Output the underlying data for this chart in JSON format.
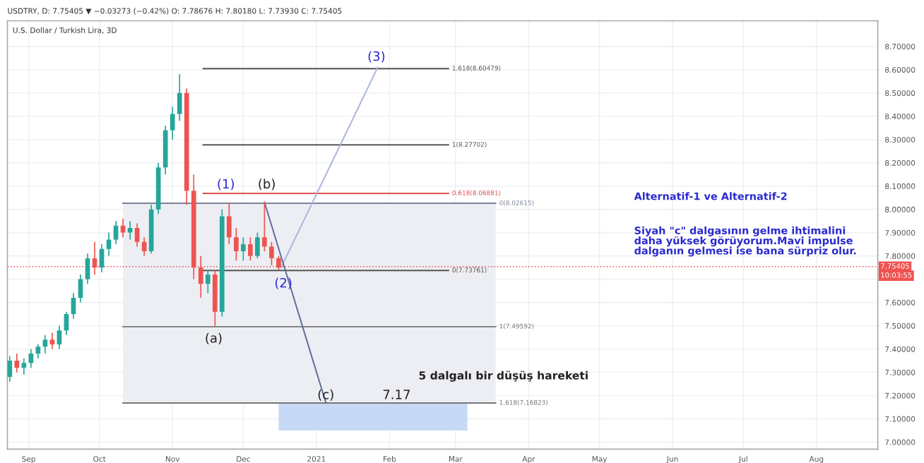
{
  "chart_data": {
    "type": "candlestick",
    "title": "U.S. Dollar / Turkish Lira, 3D",
    "subtitle": "USDTRY, D: 7.75405 ▼ −0.03273 (−0.42%) O: 7.78676 H: 7.80180 L: 7.73930 C: 7.75405",
    "x": [
      "2020-08-24",
      "2020-08-27",
      "2020-08-30",
      "2020-09-02",
      "2020-09-05",
      "2020-09-08",
      "2020-09-11",
      "2020-09-14",
      "2020-09-17",
      "2020-09-20",
      "2020-09-23",
      "2020-09-26",
      "2020-09-29",
      "2020-10-02",
      "2020-10-05",
      "2020-10-08",
      "2020-10-11",
      "2020-10-14",
      "2020-10-17",
      "2020-10-20",
      "2020-10-23",
      "2020-10-26",
      "2020-10-29",
      "2020-11-01",
      "2020-11-04",
      "2020-11-07",
      "2020-11-10",
      "2020-11-13",
      "2020-11-16",
      "2020-11-19",
      "2020-11-22",
      "2020-11-25",
      "2020-11-28",
      "2020-12-01",
      "2020-12-04",
      "2020-12-07",
      "2020-12-10",
      "2020-12-13",
      "2020-12-16"
    ],
    "ohlc": [
      [
        7.28,
        7.37,
        7.26,
        7.35
      ],
      [
        7.35,
        7.38,
        7.3,
        7.32
      ],
      [
        7.32,
        7.36,
        7.29,
        7.34
      ],
      [
        7.34,
        7.4,
        7.32,
        7.38
      ],
      [
        7.38,
        7.42,
        7.36,
        7.41
      ],
      [
        7.41,
        7.46,
        7.38,
        7.44
      ],
      [
        7.44,
        7.47,
        7.4,
        7.42
      ],
      [
        7.42,
        7.5,
        7.4,
        7.48
      ],
      [
        7.48,
        7.56,
        7.46,
        7.55
      ],
      [
        7.55,
        7.64,
        7.53,
        7.62
      ],
      [
        7.62,
        7.72,
        7.6,
        7.7
      ],
      [
        7.7,
        7.81,
        7.68,
        7.79
      ],
      [
        7.79,
        7.86,
        7.72,
        7.75
      ],
      [
        7.75,
        7.85,
        7.73,
        7.83
      ],
      [
        7.83,
        7.9,
        7.8,
        7.87
      ],
      [
        7.87,
        7.95,
        7.85,
        7.93
      ],
      [
        7.93,
        7.96,
        7.88,
        7.9
      ],
      [
        7.9,
        7.95,
        7.87,
        7.92
      ],
      [
        7.92,
        7.94,
        7.84,
        7.86
      ],
      [
        7.86,
        7.88,
        7.8,
        7.82
      ],
      [
        7.82,
        8.02,
        7.81,
        8.0
      ],
      [
        8.0,
        8.2,
        7.98,
        8.18
      ],
      [
        8.18,
        8.36,
        8.15,
        8.34
      ],
      [
        8.34,
        8.44,
        8.3,
        8.41
      ],
      [
        8.41,
        8.58,
        8.38,
        8.5
      ],
      [
        8.5,
        8.52,
        8.02,
        8.08
      ],
      [
        8.08,
        8.15,
        7.7,
        7.75
      ],
      [
        7.75,
        7.8,
        7.62,
        7.68
      ],
      [
        7.68,
        7.74,
        7.64,
        7.72
      ],
      [
        7.72,
        7.74,
        7.5,
        7.56
      ],
      [
        7.56,
        8.0,
        7.54,
        7.97
      ],
      [
        7.97,
        8.03,
        7.85,
        7.88
      ],
      [
        7.88,
        7.92,
        7.78,
        7.82
      ],
      [
        7.82,
        7.88,
        7.78,
        7.85
      ],
      [
        7.85,
        7.88,
        7.78,
        7.8
      ],
      [
        7.8,
        7.9,
        7.79,
        7.88
      ],
      [
        7.88,
        8.03,
        7.82,
        7.84
      ],
      [
        7.84,
        7.86,
        7.76,
        7.79
      ],
      [
        7.79,
        7.8,
        7.74,
        7.75
      ]
    ],
    "series": [
      {
        "type": "line",
        "color": "#eceef3",
        "x": [
          "2020-10-11",
          "2021-03-18"
        ],
        "values": [
          null,
          null
        ],
        "lower": [
          7.17,
          7.17
        ],
        "upper": [
          8.03,
          8.03
        ]
      },
      {
        "type": "line",
        "color": "#c6d9f5",
        "x": [
          "2020-12-16",
          "2021-03-06"
        ],
        "values": [
          null,
          null
        ],
        "lower": [
          7.05,
          7.05
        ],
        "upper": [
          7.17,
          7.17
        ]
      },
      {
        "type": "line",
        "name": "1.618(8.60479)",
        "color": "#555555",
        "x": [
          "2020-11-14",
          "2021-02-26"
        ],
        "values": [
          8.60479,
          8.60479
        ]
      },
      {
        "type": "line",
        "name": "1(8.27702)",
        "color": "#555555",
        "x": [
          "2020-11-14",
          "2021-02-26"
        ],
        "values": [
          8.27702,
          8.27702
        ]
      },
      {
        "type": "line",
        "name": "0.618(8.06881)",
        "color": "#e05050",
        "x": [
          "2020-11-14",
          "2021-02-26"
        ],
        "values": [
          8.06881,
          8.06881
        ]
      },
      {
        "type": "line",
        "name": "0(8.02615)",
        "color": "#7d8496",
        "x": [
          "2020-10-11",
          "2021-03-18"
        ],
        "values": [
          8.02615,
          8.02615
        ]
      },
      {
        "type": "line",
        "name": "0(7.73761)",
        "color": "#555555",
        "x": [
          "2020-11-14",
          "2021-02-26"
        ],
        "values": [
          7.73761,
          7.73761
        ]
      },
      {
        "type": "line",
        "name": "1(7.49592)",
        "color": "#777777",
        "x": [
          "2020-10-11",
          "2021-03-18"
        ],
        "values": [
          7.49592,
          7.49592
        ]
      },
      {
        "type": "line",
        "name": "1.618(7.16823)",
        "color": "#777777",
        "x": [
          "2020-10-11",
          "2021-03-18"
        ],
        "values": [
          7.16823,
          7.16823
        ]
      },
      {
        "type": "line",
        "color": "#a9b4e0",
        "x": [
          "2020-12-17",
          "2021-01-27"
        ],
        "values": [
          7.75,
          8.61
        ]
      },
      {
        "type": "line",
        "color": "#5d6a9a",
        "x": [
          "2020-12-10",
          "2021-01-05"
        ],
        "values": [
          8.03,
          7.17
        ]
      }
    ],
    "ref_lines": [
      {
        "axis": "y",
        "value": 7.75405,
        "label": "7.75405",
        "color": "#ef5350",
        "line_style": "dotted"
      }
    ],
    "annotations": [
      "(3)",
      "(1)",
      "(b)",
      {
        "text": "(2)",
        "x": "2020-12-18",
        "y": 7.68
      },
      "(a)",
      {
        "text": "(c)",
        "x": "2021-01-05",
        "y": 7.2
      },
      {
        "text": "7.17",
        "x": "2021-02-04",
        "y": 7.2
      },
      "5 dalgalı bir düşüş hareketi",
      "Alternatif-1 ve Alternatif-2",
      "Siyah \"c\" dalgasının gelme ihtimalini daha yüksek görüyorum.Mavi impulse dalganın gelmesi ise bana sürpriz olur.",
      "10:03:55"
    ],
    "xlim": [
      "2020-08-23",
      "2021-08-27"
    ],
    "xticks": [
      {
        "value": "2020-09-01",
        "label": "Sep"
      },
      {
        "value": "2020-10-01",
        "label": "Oct"
      },
      {
        "value": "2020-11-01",
        "label": "Nov"
      },
      {
        "value": "2020-12-01",
        "label": "Dec"
      },
      {
        "value": "2021-01-01",
        "label": "2021"
      },
      {
        "value": "2021-02-01",
        "label": "Feb"
      },
      {
        "value": "2021-03-01",
        "label": "Mar"
      },
      {
        "value": "2021-04-01",
        "label": "Apr"
      },
      {
        "value": "2021-05-01",
        "label": "May"
      },
      {
        "value": "2021-06-01",
        "label": "Jun"
      },
      {
        "value": "2021-07-01",
        "label": "Jul"
      },
      {
        "value": "2021-08-01",
        "label": "Aug"
      }
    ],
    "ylim": [
      6.97,
      8.81
    ],
    "yticks": [
      {
        "value": 7.0,
        "label": "7.00000"
      },
      {
        "value": 7.1,
        "label": "7.10000"
      },
      {
        "value": 7.2,
        "label": "7.20000"
      },
      {
        "value": 7.3,
        "label": "7.30000"
      },
      {
        "value": 7.4,
        "label": "7.40000"
      },
      {
        "value": 7.5,
        "label": "7.50000"
      },
      {
        "value": 7.6,
        "label": "7.60000"
      },
      {
        "value": 7.7,
        "label": null
      },
      {
        "value": 7.8,
        "label": "7.80000"
      },
      {
        "value": 7.9,
        "label": "7.90000"
      },
      {
        "value": 8.0,
        "label": "8.00000"
      },
      {
        "value": 8.1,
        "label": "8.10000"
      },
      {
        "value": 8.2,
        "label": "8.20000"
      },
      {
        "value": 8.3,
        "label": "8.30000"
      },
      {
        "value": 8.4,
        "label": "8.40000"
      },
      {
        "value": 8.5,
        "label": "8.50000"
      },
      {
        "value": 8.6,
        "label": "8.60000"
      },
      {
        "value": 8.7,
        "label": "8.70000"
      }
    ],
    "grid": true,
    "legend": false,
    "colors": [
      "#26a69a",
      "#ef5350",
      "#26a69a",
      "#26a69a",
      "#26a69a",
      "#26a69a",
      "#ef5350",
      "#26a69a",
      "#26a69a",
      "#26a69a",
      "#26a69a",
      "#26a69a",
      "#ef5350",
      "#26a69a",
      "#26a69a",
      "#26a69a",
      "#ef5350",
      "#26a69a",
      "#ef5350",
      "#ef5350",
      "#26a69a",
      "#26a69a",
      "#26a69a",
      "#26a69a",
      "#26a69a",
      "#ef5350",
      "#ef5350",
      "#ef5350",
      "#26a69a",
      "#ef5350",
      "#26a69a",
      "#ef5350",
      "#ef5350",
      "#26a69a",
      "#ef5350",
      "#26a69a",
      "#ef5350",
      "#ef5350",
      "#ef5350"
    ]
  }
}
